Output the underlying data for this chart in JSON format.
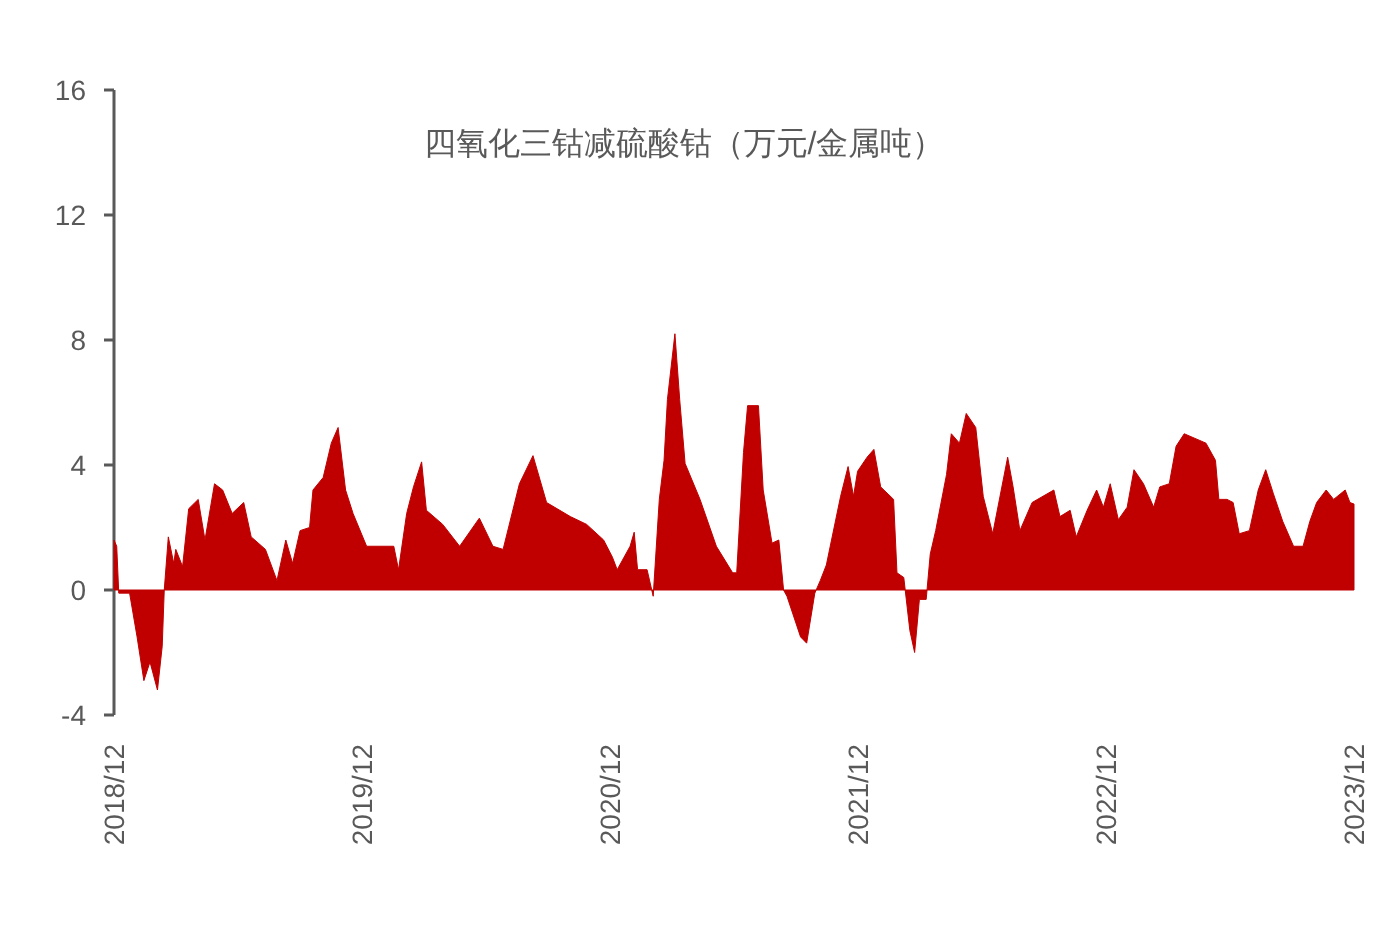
{
  "chart_data": {
    "type": "area",
    "title": "四氧化三钴减硫酸钴（万元/金属吨）",
    "color": "#c00000",
    "x": [
      "2018-12-01",
      "2018-12-05",
      "2018-12-08",
      "2018-12-24",
      "2019-01-04",
      "2019-01-14",
      "2019-01-23",
      "2019-02-03",
      "2019-02-10",
      "2019-02-13",
      "2019-02-19",
      "2019-02-27",
      "2019-03-02",
      "2019-03-12",
      "2019-03-21",
      "2019-04-04",
      "2019-04-14",
      "2019-04-28",
      "2019-05-10",
      "2019-05-24",
      "2019-06-10",
      "2019-06-21",
      "2019-07-12",
      "2019-07-29",
      "2019-08-11",
      "2019-08-21",
      "2019-09-01",
      "2019-09-15",
      "2019-09-20",
      "2019-10-05",
      "2019-10-17",
      "2019-10-27",
      "2019-11-07",
      "2019-11-18",
      "2019-12-08",
      "2020-01-17",
      "2020-01-24",
      "2020-02-05",
      "2020-02-15",
      "2020-02-27",
      "2020-03-05",
      "2020-03-29",
      "2020-04-23",
      "2020-05-22",
      "2020-06-11",
      "2020-06-26",
      "2020-07-20",
      "2020-08-09",
      "2020-08-29",
      "2020-10-03",
      "2020-10-27",
      "2020-11-21",
      "2020-12-04",
      "2020-12-11",
      "2020-12-30",
      "2021-01-05",
      "2021-01-10",
      "2021-01-24",
      "2021-02-02",
      "2021-02-11",
      "2021-02-18",
      "2021-02-23",
      "2021-03-06",
      "2021-03-13",
      "2021-03-21",
      "2021-04-12",
      "2021-05-06",
      "2021-05-30",
      "2021-06-05",
      "2021-06-15",
      "2021-06-21",
      "2021-07-07",
      "2021-07-14",
      "2021-07-27",
      "2021-08-06",
      "2021-08-13",
      "2021-08-18",
      "2021-09-07",
      "2021-09-16",
      "2021-09-28",
      "2021-10-06",
      "2021-10-15",
      "2021-11-05",
      "2021-11-16",
      "2021-11-24",
      "2021-11-30",
      "2021-12-14",
      "2021-12-24",
      "2022-01-03",
      "2022-01-22",
      "2022-01-27",
      "2022-02-06",
      "2022-02-15",
      "2022-02-22",
      "2022-03-01",
      "2022-03-11",
      "2022-03-17",
      "2022-03-25",
      "2022-04-10",
      "2022-04-17",
      "2022-04-29",
      "2022-05-09",
      "2022-05-23",
      "2022-06-03",
      "2022-06-17",
      "2022-07-09",
      "2022-07-17",
      "2022-07-27",
      "2022-08-14",
      "2022-09-15",
      "2022-09-24",
      "2022-10-09",
      "2022-10-18",
      "2022-11-03",
      "2022-11-17",
      "2022-11-27",
      "2022-12-07",
      "2022-12-19",
      "2023-01-01",
      "2023-01-11",
      "2023-01-25",
      "2023-02-09",
      "2023-02-18",
      "2023-03-04",
      "2023-03-14",
      "2023-03-26",
      "2023-04-27",
      "2023-05-11",
      "2023-05-16",
      "2023-05-28",
      "2023-06-06",
      "2023-06-15",
      "2023-06-30",
      "2023-07-13",
      "2023-07-24",
      "2023-08-04",
      "2023-08-18",
      "2023-09-03",
      "2023-09-17",
      "2023-09-27",
      "2023-10-07",
      "2023-10-21",
      "2023-11-01",
      "2023-11-18",
      "2023-11-25",
      "2023-12-01"
    ],
    "values": [
      1.6,
      1.4,
      -0.1,
      -0.1,
      -1.5,
      -2.9,
      -2.3,
      -3.2,
      -1.8,
      0,
      1.7,
      0.85,
      1.3,
      0.75,
      2.6,
      2.9,
      1.6,
      3.4,
      3.2,
      2.45,
      2.8,
      1.7,
      1.3,
      0.3,
      1.6,
      0.85,
      1.9,
      2.0,
      3.2,
      3.6,
      4.7,
      5.2,
      3.2,
      2.45,
      1.4,
      1.4,
      0.65,
      2.45,
      3.3,
      4.1,
      2.55,
      2.1,
      1.4,
      2.3,
      1.4,
      1.3,
      3.4,
      4.3,
      2.8,
      2.35,
      2.1,
      1.6,
      1.05,
      0.65,
      1.4,
      1.85,
      0.65,
      0.65,
      -0.2,
      2.9,
      4.15,
      6.1,
      8.2,
      6.1,
      4.05,
      2.9,
      1.4,
      0.55,
      0.55,
      4.4,
      5.9,
      5.9,
      3.2,
      1.5,
      1.6,
      0,
      -0.2,
      -1.5,
      -1.7,
      -0.1,
      0.3,
      0.8,
      3.0,
      3.95,
      3.0,
      3.8,
      4.25,
      4.5,
      3.3,
      2.9,
      0.55,
      0.4,
      -1.3,
      -2.0,
      -0.3,
      -0.3,
      1.15,
      1.9,
      3.7,
      5.0,
      4.7,
      5.65,
      5.2,
      3.0,
      1.8,
      4.25,
      3.3,
      1.9,
      2.8,
      3.2,
      2.35,
      2.55,
      1.7,
      2.55,
      3.2,
      2.65,
      3.4,
      2.25,
      2.65,
      3.85,
      3.4,
      2.65,
      3.3,
      3.4,
      4.6,
      5.0,
      4.7,
      4.15,
      2.9,
      2.9,
      2.8,
      1.8,
      1.9,
      3.2,
      3.85,
      3.1,
      2.2,
      1.4,
      1.4,
      2.2,
      2.8,
      3.2,
      2.9,
      3.2,
      2.8,
      2.75
    ],
    "xlim": [
      "2018-12-01",
      "2023-12-01"
    ],
    "xticks": [
      {
        "value": "2018-12-01",
        "label": "2018/12"
      },
      {
        "value": "2019-12-01",
        "label": "2019/12"
      },
      {
        "value": "2020-12-01",
        "label": "2020/12"
      },
      {
        "value": "2021-12-01",
        "label": "2021/12"
      },
      {
        "value": "2022-12-01",
        "label": "2022/12"
      },
      {
        "value": "2023-12-01",
        "label": "2023/12"
      }
    ],
    "ylim": [
      -4,
      16
    ],
    "yticks": [
      -4,
      0,
      4,
      8,
      12,
      16
    ]
  }
}
